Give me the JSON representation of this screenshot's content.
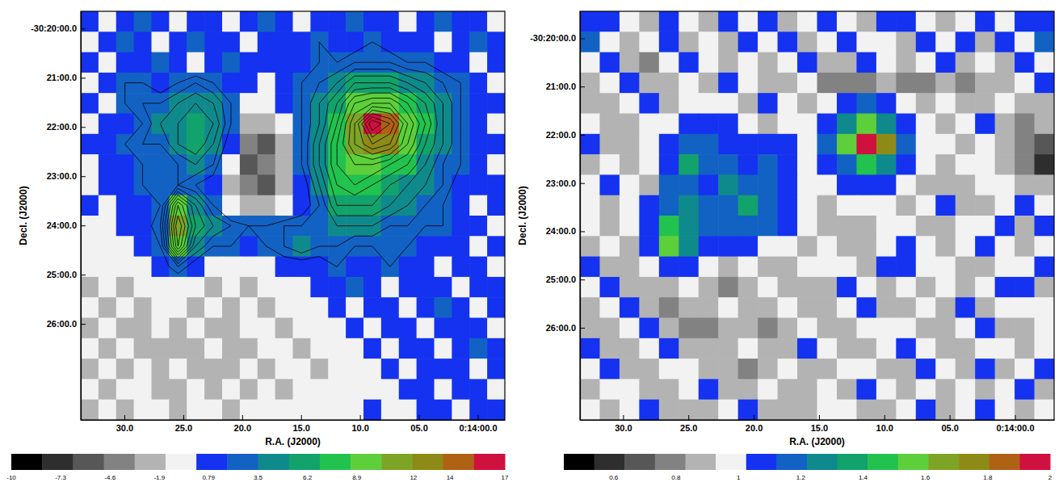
{
  "chart_data": [
    {
      "type": "heatmap",
      "xlabel": "R.A. (J2000)",
      "ylabel": "Decl. (J2000)",
      "xlim": [
        33.7,
        -2.3
      ],
      "xticks": [
        {
          "value": 30,
          "label": "30.0"
        },
        {
          "value": 25,
          "label": "25.0"
        },
        {
          "value": 20,
          "label": "20.0"
        },
        {
          "value": 15,
          "label": "15.0"
        },
        {
          "value": 10,
          "label": "10.0"
        },
        {
          "value": 5,
          "label": "05.0"
        },
        {
          "value": 0,
          "label": "0:14:00.0"
        }
      ],
      "ylim": [
        19.65,
        27.95
      ],
      "yticks": [
        {
          "value": 20,
          "label": "-30:20:00.0"
        },
        {
          "value": 21,
          "label": "21:00.0"
        },
        {
          "value": 22,
          "label": "22:00.0"
        },
        {
          "value": 23,
          "label": "23:00.0"
        },
        {
          "value": 24,
          "label": "24:00.0"
        },
        {
          "value": 25,
          "label": "25:00.0"
        },
        {
          "value": 26,
          "label": "26:00.0"
        }
      ],
      "cells": [
        [
          1,
          0,
          1,
          2,
          1,
          0,
          1,
          1,
          0,
          1,
          2,
          1,
          0,
          1,
          1,
          2,
          1,
          1,
          0,
          1,
          2,
          1,
          1,
          0
        ],
        [
          0,
          1,
          2,
          1,
          0,
          1,
          2,
          1,
          1,
          0,
          1,
          1,
          1,
          2,
          1,
          1,
          2,
          1,
          1,
          1,
          0,
          1,
          2,
          1
        ],
        [
          1,
          0,
          1,
          1,
          2,
          1,
          0,
          1,
          2,
          1,
          1,
          1,
          1,
          2,
          2,
          3,
          3,
          3,
          2,
          2,
          1,
          1,
          0,
          1
        ],
        [
          0,
          1,
          2,
          2,
          1,
          2,
          3,
          2,
          1,
          1,
          0,
          1,
          2,
          3,
          4,
          6,
          6,
          6,
          5,
          4,
          3,
          2,
          1,
          0
        ],
        [
          1,
          0,
          2,
          3,
          3,
          4,
          5,
          4,
          2,
          0,
          -1,
          1,
          2,
          4,
          6,
          9,
          10,
          10,
          8,
          6,
          4,
          2,
          1,
          1
        ],
        [
          0,
          1,
          1,
          2,
          4,
          5,
          6,
          5,
          2,
          -2,
          -3,
          0,
          2,
          4,
          7,
          11,
          16,
          14,
          10,
          7,
          4,
          2,
          1,
          0
        ],
        [
          1,
          1,
          2,
          3,
          3,
          5,
          6,
          4,
          1,
          -4,
          -5,
          -2,
          2,
          5,
          8,
          11,
          13,
          12,
          9,
          6,
          4,
          2,
          1,
          1
        ],
        [
          0,
          1,
          1,
          2,
          2,
          3,
          4,
          3,
          -1,
          -5,
          -4,
          -3,
          2,
          5,
          8,
          9,
          9,
          8,
          7,
          5,
          3,
          2,
          1,
          0
        ],
        [
          0,
          1,
          1,
          2,
          2,
          3,
          2,
          1,
          -2,
          -4,
          -5,
          -2,
          1,
          4,
          7,
          8,
          7,
          6,
          5,
          4,
          3,
          1,
          1,
          1
        ],
        [
          1,
          0,
          1,
          1,
          2,
          9,
          5,
          2,
          -1,
          -3,
          -3,
          -1,
          1,
          3,
          6,
          6,
          6,
          5,
          4,
          3,
          2,
          1,
          0,
          1
        ],
        [
          0,
          0,
          1,
          1,
          3,
          11,
          6,
          4,
          3,
          2,
          2,
          3,
          3,
          3,
          4,
          4,
          4,
          3,
          3,
          2,
          2,
          1,
          1,
          0
        ],
        [
          -1,
          0,
          0,
          1,
          2,
          10,
          4,
          2,
          2,
          1,
          2,
          3,
          4,
          3,
          3,
          2,
          2,
          2,
          2,
          1,
          1,
          1,
          0,
          1
        ],
        [
          -1,
          -1,
          0,
          0,
          1,
          3,
          1,
          0,
          -1,
          -1,
          0,
          1,
          1,
          1,
          2,
          1,
          1,
          2,
          1,
          1,
          0,
          1,
          1,
          0
        ],
        [
          -2,
          -1,
          -2,
          -1,
          0,
          0,
          -1,
          -2,
          -1,
          -2,
          -1,
          0,
          0,
          1,
          1,
          2,
          1,
          0,
          1,
          1,
          1,
          0,
          1,
          1
        ],
        [
          -1,
          -2,
          -1,
          -2,
          -1,
          -1,
          -2,
          -1,
          -2,
          -1,
          -2,
          -1,
          0,
          0,
          1,
          0,
          1,
          1,
          0,
          1,
          2,
          1,
          0,
          1
        ],
        [
          -2,
          -1,
          -3,
          -2,
          -1,
          -2,
          -1,
          -3,
          -2,
          -1,
          -1,
          -2,
          -1,
          0,
          0,
          1,
          0,
          1,
          1,
          0,
          1,
          1,
          1,
          0
        ],
        [
          -1,
          -2,
          -1,
          -2,
          -3,
          -2,
          -2,
          -1,
          -2,
          -2,
          -1,
          -1,
          -2,
          -1,
          0,
          0,
          1,
          0,
          1,
          1,
          0,
          1,
          2,
          1
        ],
        [
          -2,
          -1,
          -2,
          -1,
          -2,
          -1,
          -2,
          -3,
          -2,
          -1,
          -2,
          -1,
          -1,
          -2,
          -1,
          0,
          0,
          1,
          0,
          1,
          1,
          1,
          0,
          1
        ],
        [
          -1,
          -2,
          -1,
          -1,
          -2,
          -2,
          -1,
          -2,
          -1,
          -2,
          -1,
          -2,
          -1,
          -1,
          0,
          -1,
          0,
          0,
          1,
          1,
          0,
          1,
          1,
          0
        ],
        [
          -2,
          -1,
          -2,
          -1,
          -1,
          -2,
          -1,
          -1,
          -2,
          -1,
          -1,
          -1,
          0,
          -1,
          -1,
          0,
          1,
          0,
          0,
          1,
          1,
          0,
          1,
          1
        ]
      ],
      "contour_levels": [
        2,
        3,
        4,
        5,
        6,
        7,
        8,
        9,
        10,
        11,
        12,
        13,
        14,
        15,
        16
      ],
      "colorbar_range": [
        -10,
        17
      ],
      "colorbar_ticks": [
        -10,
        -7.3,
        -4.6,
        -1.9,
        0.79,
        3.5,
        6.2,
        8.9,
        12,
        14,
        17
      ]
    },
    {
      "type": "heatmap",
      "xlabel": "R.A. (J2000)",
      "ylabel": "Decl. (J2000)",
      "xlim": [
        33.3,
        -3.0
      ],
      "xticks": [
        {
          "value": 30,
          "label": "30.0"
        },
        {
          "value": 25,
          "label": "25.0"
        },
        {
          "value": 20,
          "label": "20.0"
        },
        {
          "value": 15,
          "label": "15.0"
        },
        {
          "value": 10,
          "label": "10.0"
        },
        {
          "value": 5,
          "label": "05.0"
        },
        {
          "value": 0,
          "label": "0:14:00.0"
        }
      ],
      "ylim": [
        19.44,
        27.91
      ],
      "yticks": [
        {
          "value": 20,
          "label": "-30:20:00.0"
        },
        {
          "value": 21,
          "label": "21:00.0"
        },
        {
          "value": 22,
          "label": "22:00.0"
        },
        {
          "value": 23,
          "label": "23:00.0"
        },
        {
          "value": 24,
          "label": "24:00.0"
        },
        {
          "value": 25,
          "label": "25:00.0"
        },
        {
          "value": 26,
          "label": "26:00.0"
        }
      ],
      "cells": [
        [
          1.1,
          1.05,
          0.95,
          0.85,
          1.1,
          0.95,
          0.9,
          1.1,
          0.95,
          1.05,
          0.9,
          0.95,
          1.1,
          1.0,
          0.9,
          1.1,
          1.05,
          0.95,
          0.9,
          1.0,
          1.1,
          0.95,
          1.05,
          1.1
        ],
        [
          1.15,
          0.95,
          0.85,
          0.95,
          1.05,
          0.9,
          0.95,
          0.85,
          1.05,
          0.95,
          1.1,
          0.9,
          0.95,
          1.05,
          0.95,
          1.0,
          0.9,
          1.1,
          0.95,
          1.05,
          0.9,
          1.1,
          0.95,
          1.2
        ],
        [
          0.95,
          1.1,
          0.9,
          0.8,
          0.95,
          1.1,
          0.95,
          0.9,
          1.0,
          0.85,
          0.95,
          1.05,
          0.9,
          0.85,
          1.1,
          0.95,
          0.85,
          0.95,
          1.05,
          0.9,
          0.95,
          0.85,
          1.1,
          0.95
        ],
        [
          0.9,
          0.95,
          1.05,
          0.9,
          0.85,
          0.95,
          0.9,
          1.05,
          0.95,
          0.9,
          0.85,
          0.95,
          0.8,
          0.75,
          0.8,
          0.85,
          0.75,
          0.8,
          0.9,
          0.75,
          0.85,
          0.9,
          0.95,
          1.05
        ],
        [
          0.85,
          0.9,
          0.95,
          1.05,
          0.9,
          0.95,
          1.0,
          0.95,
          0.9,
          1.05,
          0.95,
          0.9,
          0.95,
          1.1,
          1.15,
          1.1,
          1.0,
          0.9,
          0.95,
          0.85,
          0.9,
          0.95,
          0.85,
          0.9
        ],
        [
          0.95,
          0.85,
          0.9,
          0.95,
          1.0,
          1.05,
          1.1,
          1.05,
          0.95,
          0.9,
          1.0,
          0.95,
          1.1,
          1.25,
          1.55,
          1.3,
          1.1,
          0.95,
          0.9,
          0.95,
          1.05,
          0.9,
          0.8,
          0.85
        ],
        [
          1.05,
          0.9,
          0.85,
          0.95,
          1.05,
          1.15,
          1.2,
          1.1,
          1.05,
          1.1,
          1.05,
          0.95,
          1.15,
          1.6,
          1.95,
          1.75,
          1.2,
          1.0,
          0.95,
          0.9,
          0.95,
          0.85,
          0.75,
          0.65
        ],
        [
          0.9,
          0.95,
          0.9,
          1.0,
          1.1,
          1.35,
          1.2,
          1.15,
          1.1,
          1.2,
          1.1,
          1.0,
          1.05,
          1.2,
          1.45,
          1.25,
          1.1,
          0.95,
          0.9,
          0.95,
          1.0,
          0.9,
          0.8,
          0.55
        ],
        [
          0.95,
          1.05,
          0.95,
          0.9,
          1.15,
          1.2,
          1.1,
          1.25,
          1.2,
          1.15,
          1.05,
          0.95,
          0.95,
          1.05,
          1.1,
          1.05,
          0.95,
          0.9,
          0.85,
          0.9,
          0.95,
          1.0,
          0.85,
          0.9
        ],
        [
          1.0,
          0.9,
          0.95,
          1.05,
          1.2,
          1.25,
          1.15,
          1.2,
          1.4,
          1.2,
          1.1,
          0.95,
          0.9,
          0.95,
          1.0,
          0.95,
          0.9,
          0.95,
          1.05,
          0.9,
          0.85,
          0.95,
          1.05,
          0.95
        ],
        [
          0.95,
          0.85,
          1.0,
          1.1,
          1.5,
          1.3,
          1.2,
          1.15,
          1.2,
          1.15,
          1.05,
          1.0,
          0.9,
          0.85,
          0.9,
          1.0,
          0.95,
          0.85,
          0.9,
          1.0,
          0.95,
          1.05,
          0.9,
          1.1
        ],
        [
          0.9,
          0.95,
          0.9,
          1.05,
          1.6,
          1.25,
          1.1,
          1.05,
          1.1,
          1.0,
          0.95,
          0.9,
          0.95,
          0.9,
          0.85,
          0.95,
          1.05,
          0.95,
          0.9,
          0.95,
          1.1,
          0.95,
          0.85,
          0.95
        ],
        [
          1.05,
          0.9,
          0.85,
          0.95,
          1.1,
          1.05,
          0.95,
          0.9,
          0.95,
          0.9,
          0.85,
          0.95,
          1.0,
          0.95,
          0.9,
          1.05,
          1.1,
          1.0,
          0.95,
          0.85,
          0.9,
          1.0,
          0.95,
          1.05
        ],
        [
          0.95,
          1.1,
          0.9,
          0.85,
          0.9,
          0.95,
          0.85,
          0.8,
          0.9,
          0.95,
          0.9,
          0.85,
          0.9,
          1.05,
          0.95,
          0.9,
          0.95,
          0.85,
          1.0,
          0.9,
          0.95,
          1.05,
          1.1,
          0.9
        ],
        [
          0.85,
          0.95,
          1.05,
          0.9,
          0.8,
          0.85,
          0.9,
          0.95,
          0.85,
          0.9,
          1.0,
          0.9,
          0.85,
          0.95,
          1.05,
          0.85,
          0.9,
          0.95,
          0.9,
          1.05,
          0.9,
          0.95,
          1.0,
          0.95
        ],
        [
          0.9,
          0.85,
          0.95,
          1.1,
          0.9,
          0.75,
          0.8,
          0.85,
          0.9,
          0.8,
          0.85,
          0.95,
          0.9,
          0.85,
          0.95,
          1.0,
          0.95,
          0.9,
          0.85,
          0.95,
          1.1,
          0.9,
          0.85,
          1.0
        ],
        [
          1.05,
          0.9,
          0.85,
          0.95,
          1.05,
          0.9,
          0.85,
          0.9,
          0.95,
          0.85,
          0.9,
          1.05,
          0.95,
          0.9,
          0.85,
          0.95,
          1.05,
          0.95,
          0.9,
          0.85,
          0.95,
          1.0,
          0.9,
          0.95
        ],
        [
          0.95,
          1.1,
          0.9,
          0.85,
          0.95,
          1.0,
          0.9,
          0.85,
          0.8,
          0.9,
          0.95,
          0.9,
          0.85,
          1.0,
          0.95,
          0.9,
          0.85,
          1.1,
          0.95,
          0.9,
          1.05,
          0.9,
          0.95,
          1.1
        ],
        [
          0.9,
          0.95,
          1.0,
          0.9,
          0.85,
          0.95,
          1.05,
          0.9,
          0.85,
          0.95,
          0.9,
          0.85,
          0.95,
          0.9,
          1.05,
          0.95,
          0.9,
          0.95,
          0.85,
          1.0,
          0.9,
          0.95,
          1.05,
          0.9
        ],
        [
          1.0,
          0.9,
          0.95,
          1.05,
          0.9,
          0.85,
          0.9,
          0.95,
          1.1,
          0.9,
          0.85,
          0.9,
          1.0,
          0.95,
          0.9,
          0.85,
          0.95,
          1.05,
          0.9,
          0.95,
          1.1,
          0.95,
          0.9,
          0.95
        ]
      ],
      "colorbar_range": [
        0.44,
        2.0
      ],
      "colorbar_ticks": [
        0.6,
        0.8,
        1,
        1.2,
        1.4,
        1.6,
        1.8,
        2
      ]
    }
  ]
}
